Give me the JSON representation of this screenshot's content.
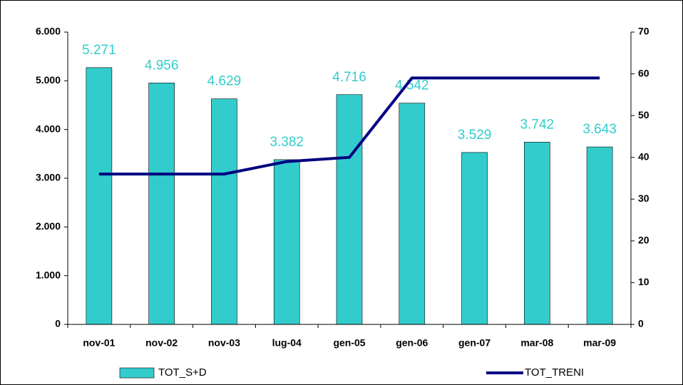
{
  "chart_data": {
    "type": "bar",
    "categories": [
      "nov-01",
      "nov-02",
      "nov-03",
      "lug-04",
      "gen-05",
      "gen-06",
      "gen-07",
      "mar-08",
      "mar-09"
    ],
    "series": [
      {
        "name": "TOT_S+D",
        "type": "bar",
        "color": "#33cccc",
        "values": [
          5271,
          4956,
          4629,
          3382,
          4716,
          4542,
          3529,
          3742,
          3643
        ],
        "value_labels": [
          "5.271",
          "4.956",
          "4.629",
          "3.382",
          "4.716",
          "4.542",
          "3.529",
          "3.742",
          "3.643"
        ]
      },
      {
        "name": "TOT_TRENI",
        "type": "line",
        "color": "#000080",
        "axis": "y2",
        "values": [
          36,
          36,
          36,
          39,
          40,
          59,
          59,
          59,
          59
        ]
      }
    ],
    "ylim": [
      0,
      6000
    ],
    "yticks": [
      0,
      {
        "value": 1000,
        "label": "1.000"
      },
      {
        "value": 2000,
        "label": "2.000"
      },
      {
        "value": 3000,
        "label": "3.000"
      },
      {
        "value": 4000,
        "label": "4.000"
      },
      {
        "value": 5000,
        "label": "5.000"
      },
      {
        "value": 6000,
        "label": "6.000"
      }
    ],
    "y2lim": [
      0,
      70
    ],
    "y2ticks": [
      0,
      10,
      20,
      30,
      40,
      50,
      60,
      70
    ],
    "legend": "bottom"
  }
}
